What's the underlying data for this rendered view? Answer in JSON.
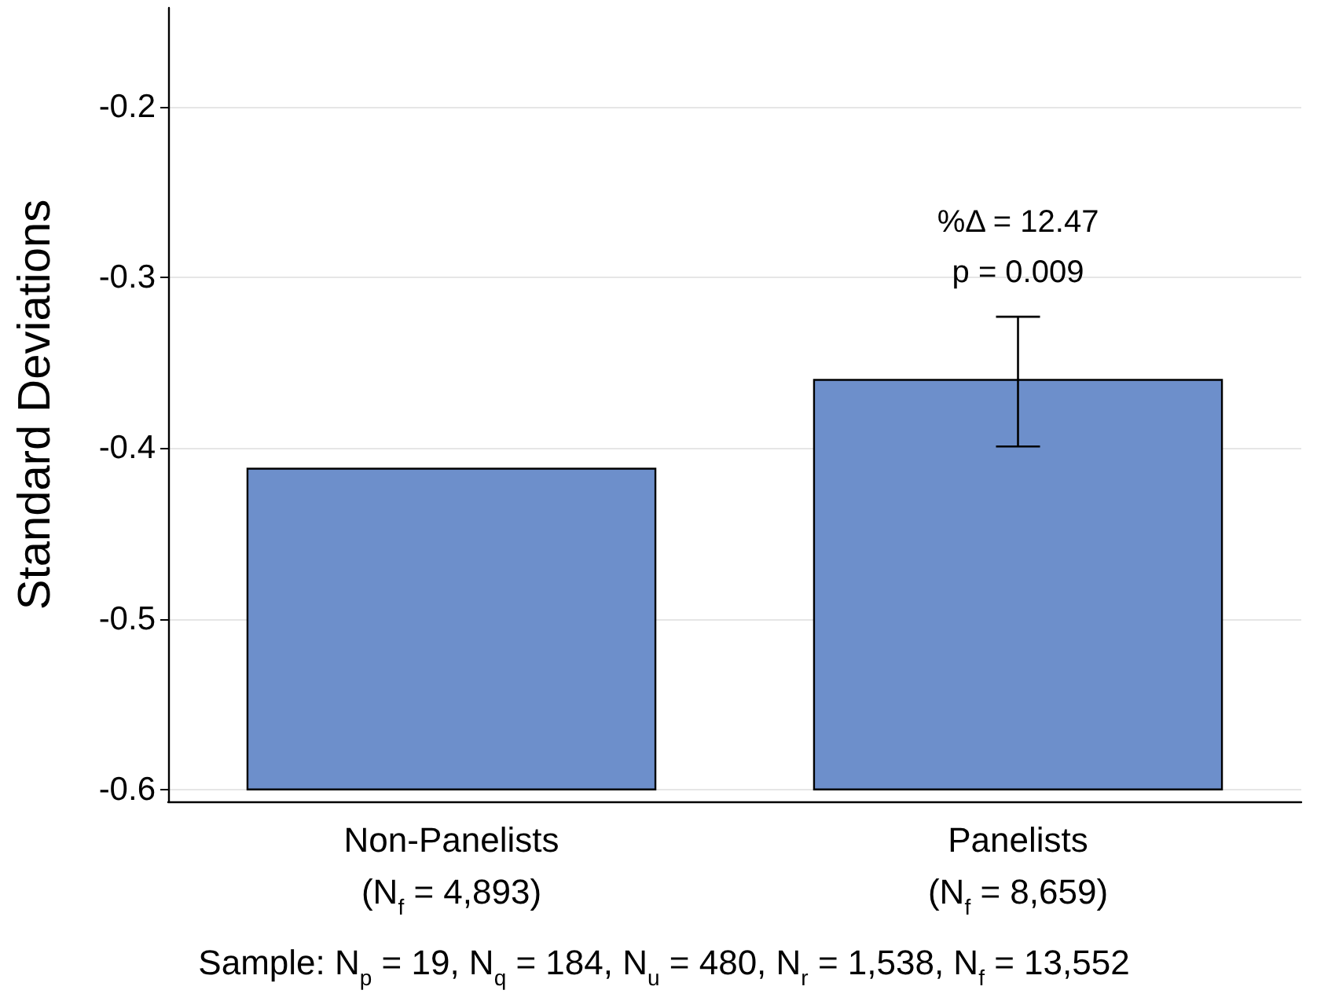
{
  "chart_data": {
    "type": "bar",
    "ylabel": "Standard Deviations",
    "categories": [
      "Non-Panelists\n(N$_{f}$ = 4,893)",
      "Panelists\n(N$_{f}$ = 8,659)"
    ],
    "base": [
      -0.6,
      -0.6
    ],
    "values": [
      0.188,
      0.24
    ],
    "color": "#6d8fcb",
    "errors": [
      null,
      [
        -0.399,
        -0.323
      ]
    ],
    "ylim": [
      -0.607,
      -0.142
    ],
    "yticks": [
      -0.6,
      -0.5,
      -0.4,
      -0.3,
      -0.2
    ],
    "grid": "y",
    "legend": false,
    "annotations": [
      "%Δ = 12.47\np = 0.009",
      "Sample: N$_{p}$ = 19, N$_{q}$ = 184, N$_{u}$ = 480, N$_{r}$ = 1,538, N$_{f}$ = 13,552"
    ]
  }
}
